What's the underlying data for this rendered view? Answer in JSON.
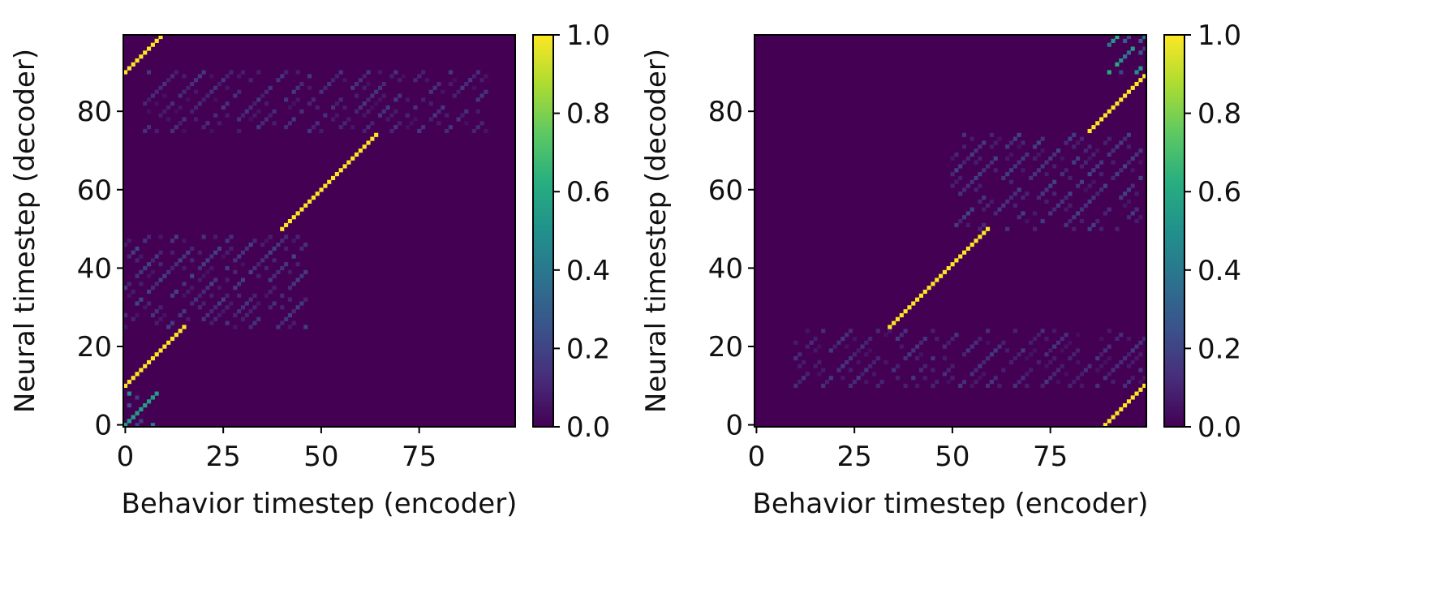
{
  "chart_data": [
    {
      "type": "heatmap",
      "xlabel": "Behavior timestep (encoder)",
      "ylabel": "Neural timestep (decoder)",
      "xlim": [
        0,
        99
      ],
      "ylim": [
        0,
        99
      ],
      "xticks": [
        0,
        25,
        50,
        75
      ],
      "yticks": [
        0,
        20,
        40,
        60,
        80
      ],
      "colorbar": {
        "min": 0.0,
        "max": 1.0,
        "ticks": [
          "0.0",
          "0.2",
          "0.4",
          "0.6",
          "0.8",
          "1.0"
        ],
        "colormap": "viridis"
      },
      "background_value": 0.0,
      "diagonals": [
        {
          "x_start": 0,
          "y_start": 90,
          "length": 10,
          "value": 1.0
        },
        {
          "x_start": 40,
          "y_start": 50,
          "length": 25,
          "value": 1.0
        },
        {
          "x_start": 0,
          "y_start": 10,
          "length": 16,
          "value": 1.0
        },
        {
          "x_start": 0,
          "y_start": 0,
          "length": 9,
          "value": 0.55
        }
      ],
      "diffuse_regions": [
        {
          "x_range": [
            5,
            92
          ],
          "y_range": [
            75,
            90
          ],
          "value": 0.12
        },
        {
          "x_range": [
            0,
            46
          ],
          "y_range": [
            25,
            48
          ],
          "value": 0.15
        },
        {
          "x_range": [
            0,
            8
          ],
          "y_range": [
            0,
            8
          ],
          "value": 0.35
        }
      ]
    },
    {
      "type": "heatmap",
      "xlabel": "Behavior timestep (encoder)",
      "ylabel": "Neural timestep (decoder)",
      "xlim": [
        0,
        99
      ],
      "ylim": [
        0,
        99
      ],
      "xticks": [
        0,
        25,
        50,
        75
      ],
      "yticks": [
        0,
        20,
        40,
        60,
        80
      ],
      "colorbar": {
        "min": 0.0,
        "max": 1.0,
        "ticks": [
          "0.0",
          "0.2",
          "0.4",
          "0.6",
          "0.8",
          "1.0"
        ],
        "colormap": "viridis"
      },
      "background_value": 0.0,
      "diagonals": [
        {
          "x_start": 34,
          "y_start": 25,
          "length": 26,
          "value": 1.0
        },
        {
          "x_start": 85,
          "y_start": 75,
          "length": 15,
          "value": 1.0
        },
        {
          "x_start": 89,
          "y_start": 0,
          "length": 11,
          "value": 1.0
        }
      ],
      "diffuse_regions": [
        {
          "x_range": [
            10,
            99
          ],
          "y_range": [
            10,
            24
          ],
          "value": 0.12
        },
        {
          "x_range": [
            50,
            99
          ],
          "y_range": [
            50,
            74
          ],
          "value": 0.15
        },
        {
          "x_range": [
            90,
            99
          ],
          "y_range": [
            90,
            99
          ],
          "value": 0.45
        }
      ]
    }
  ]
}
